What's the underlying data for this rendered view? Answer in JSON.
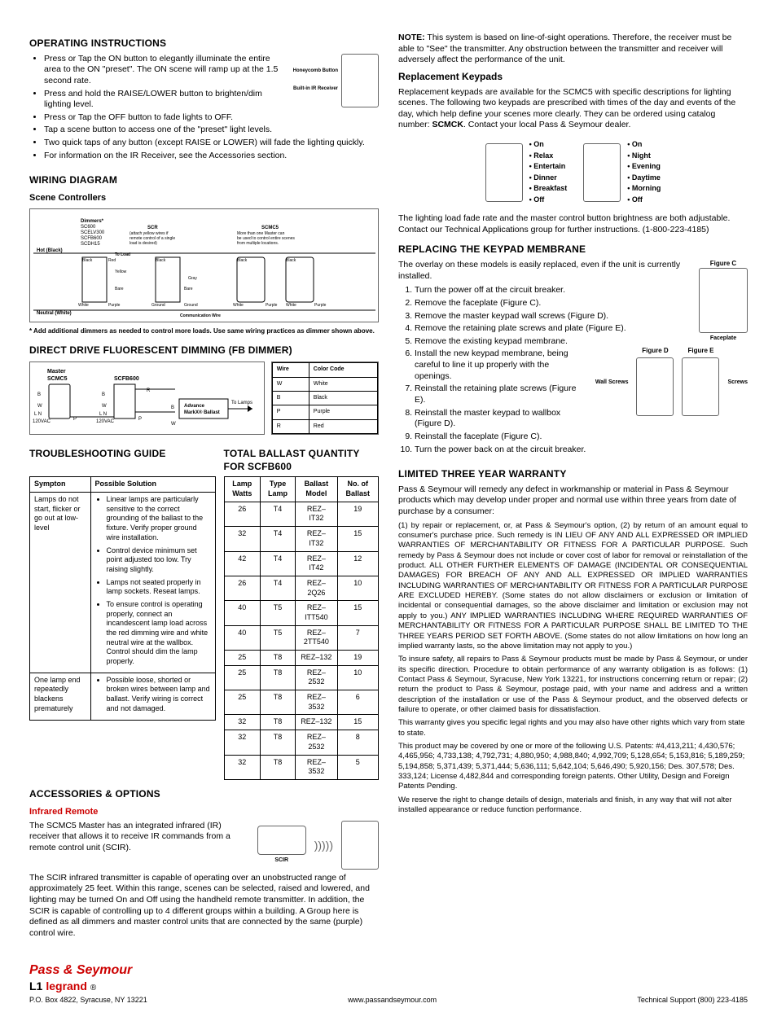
{
  "colors": {
    "accent": "#c00",
    "text": "#000",
    "border": "#666",
    "bg": "#ffffff"
  },
  "left": {
    "operating": {
      "title": "OPERATING INSTRUCTIONS",
      "items": [
        "Press or Tap the ON button to elegantly illuminate the entire area to the ON \"preset\". The ON scene will ramp up at the 1.5 second rate.",
        "Press and hold the RAISE/LOWER button to brighten/dim lighting level.",
        "Press or Tap the OFF button to fade lights to OFF.",
        "Tap a scene button to access one of the \"preset\" light levels.",
        "Two quick taps of any button (except RAISE or LOWER) will fade the lighting quickly.",
        "For information on the IR Receiver, see the Accessories section."
      ],
      "side_labels": {
        "top": "Honeycomb Button",
        "bottom": "Built-in IR Receiver"
      }
    },
    "wiring": {
      "title": "WIRING DIAGRAM",
      "sub": "Scene Controllers",
      "labels": {
        "dimmers": "Dimmers* SC600 SCELV300 SCFB600 SCDH15",
        "scr": "SCR (attach yellow wires if remote control of a single load is desired)",
        "scmc5": "SCMC5 More than one Master can be used to control entire scenes from multiple locations.",
        "hot": "Hot (Black)",
        "neutral": "Neutral (White)",
        "wires": [
          "Black",
          "Red",
          "Yellow",
          "Bare",
          "White",
          "Purple",
          "Gray",
          "Ground",
          "To Load",
          "Communication Wire"
        ]
      },
      "footnote": "* Add additional dimmers as needed to control more loads. Use same wiring practices as dimmer shown above."
    },
    "fb": {
      "title": "DIRECT DRIVE FLUORESCENT DIMMING (FB DIMMER)",
      "labels": {
        "master": "Master SCMC5",
        "dimmer": "SCFB600",
        "ballast": "Advance MarkX® Ballast",
        "to_lamps": "To Lamps"
      },
      "wire_table": {
        "header": [
          "Wire",
          "Color Code"
        ],
        "rows": [
          [
            "W",
            "White"
          ],
          [
            "B",
            "Black"
          ],
          [
            "P",
            "Purple"
          ],
          [
            "R",
            "Red"
          ]
        ]
      },
      "pins": [
        "B",
        "W",
        "L N",
        "120VAC",
        "P",
        "R"
      ]
    },
    "troubleshoot": {
      "title": "TROUBLESHOOTING GUIDE",
      "header": [
        "Sympton",
        "Possible Solution"
      ],
      "rows": [
        {
          "symptom": "Lamps do not start, flicker or go out at low-level",
          "solutions": [
            "Linear lamps are particularly sensitive to the correct grounding of the ballast to the fixture. Verify proper ground wire installation.",
            "Control device minimum set point adjusted too low. Try raising slightly.",
            "Lamps not seated properly in lamp sockets. Reseat lamps.",
            "To ensure control is operating properly, connect an incandescent lamp load across the red dimming wire and white neutral wire at the wallbox. Control should dim the lamp properly."
          ]
        },
        {
          "symptom": "One lamp end repeatedly blackens prematurely",
          "solutions": [
            "Possible loose, shorted or broken wires between lamp and ballast. Verify wiring is correct and not damaged."
          ]
        }
      ]
    },
    "ballast": {
      "title": "TOTAL BALLAST QUANTITY FOR SCFB600",
      "header": [
        "Lamp Watts",
        "Type Lamp",
        "Ballast Model",
        "No. of Ballast"
      ],
      "rows": [
        [
          "26",
          "T4",
          "REZ–IT32",
          "19"
        ],
        [
          "32",
          "T4",
          "REZ–IT32",
          "15"
        ],
        [
          "42",
          "T4",
          "REZ–IT42",
          "12"
        ],
        [
          "26",
          "T4",
          "REZ–2Q26",
          "10"
        ],
        [
          "40",
          "T5",
          "REZ–ITT540",
          "15"
        ],
        [
          "40",
          "T5",
          "REZ–2TT540",
          "7"
        ],
        [
          "25",
          "T8",
          "REZ–132",
          "19"
        ],
        [
          "25",
          "T8",
          "REZ–2532",
          "10"
        ],
        [
          "25",
          "T8",
          "REZ–3532",
          "6"
        ],
        [
          "32",
          "T8",
          "REZ–132",
          "15"
        ],
        [
          "32",
          "T8",
          "REZ–2532",
          "8"
        ],
        [
          "32",
          "T8",
          "REZ–3532",
          "5"
        ]
      ]
    },
    "accessories": {
      "title": "ACCESSORIES & OPTIONS",
      "sub": "Infrared Remote",
      "p1a": "The SCMC5 Master has an integrated infrared (IR) receiver that allows it to receive IR commands from a remote control unit (SCIR).",
      "scir_label": "SCIR",
      "p2": "The SCIR infrared transmitter is capable of operating over an unobstructed range of approximately 25 feet. Within this range, scenes can be selected, raised and lowered, and lighting may be turned On and Off using the handheld remote transmitter. In addition, the SCIR is capable of controlling up to 4 different groups within a building. A Group here is defined as all dimmers and master control units that are connected by the same (purple) control wire."
    }
  },
  "right": {
    "note": {
      "label": "NOTE:",
      "text": "  This system is based on line-of-sight operations. Therefore, the receiver must be able to \"See\" the transmitter. Any obstruction between the transmitter and receiver will adversely affect the performance of the unit."
    },
    "replacement": {
      "title": "Replacement Keypads",
      "p1": "Replacement keypads are available for the SCMC5 with specific descriptions for lighting scenes. The following two keypads are prescribed with times of the day and events of the day, which help define your scenes more clearly. They can be ordered using catalog number: ",
      "catalog": "SCMCK",
      "p1b": ". Contact your local Pass & Seymour dealer.",
      "keypad1": [
        "On",
        "Relax",
        "Entertain",
        "Dinner",
        "Breakfast",
        "Off"
      ],
      "keypad2": [
        "On",
        "Night",
        "Evening",
        "Daytime",
        "Morning",
        "Off"
      ],
      "p2": "The lighting load fade rate and the master control button brightness are both adjustable. Contact our Technical Applications group for further instructions. (1-800-223-4185)"
    },
    "membrane": {
      "title": "REPLACING THE KEYPAD MEMBRANE",
      "intro": "The overlay on these models is easily replaced, even if the unit is currently installed.",
      "steps": [
        "Turn the power off at the circuit breaker.",
        "Remove the faceplate (Figure C).",
        "Remove the master keypad wall screws (Figure D).",
        "Remove the retaining plate screws and plate (Figure E).",
        "Remove the existing keypad membrane.",
        "Install the new keypad membrane, being careful to line it up properly with the openings.",
        "Reinstall the retaining plate screws (Figure E).",
        "Reinstall the master keypad to wallbox (Figure D).",
        "Reinstall the faceplate (Figure C).",
        "Turn the power back on at the circuit breaker."
      ],
      "fig_c": "Figure C",
      "fig_d": "Figure D",
      "fig_e": "Figure E",
      "faceplate": "Faceplate",
      "wall_screws": "Wall Screws",
      "screws": "Screws"
    },
    "warranty": {
      "title": "LIMITED THREE YEAR WARRANTY",
      "p1": "Pass & Seymour will remedy any defect in workmanship or material in Pass & Seymour products which may develop under proper and normal use within three years from date of purchase by a consumer:",
      "p2": "(1) by repair or replacement, or, at Pass & Seymour's option, (2) by return of an amount equal to consumer's purchase price. Such remedy is IN LIEU OF ANY AND ALL EXPRESSED OR IMPLIED WARRANTIES OF MERCHANTABILITY OR FITNESS FOR A PARTICULAR PURPOSE. Such remedy by Pass & Seymour does not include or cover cost of labor for removal or reinstallation of the product. ALL OTHER FURTHER ELEMENTS OF DAMAGE (INCIDENTAL OR CONSEQUENTIAL DAMAGES) FOR BREACH OF ANY AND ALL EXPRESSED OR IMPLIED WARRANTIES INCLUDING WARRANTIES OF MERCHANTABILITY OR FITNESS FOR A PARTICULAR PURPOSE ARE EXCLUDED HEREBY. (Some states do not allow disclaimers or exclusion or limitation of incidental or consequential damages, so the above disclaimer and limitation or exclusion may not apply to you.) ANY IMPLIED WARRANTIES INCLUDING WHERE REQUIRED WARRANTIES OF MERCHANTABILITY OR FITNESS FOR A PARTICULAR PURPOSE SHALL BE LIMITED TO THE THREE YEARS PERIOD SET FORTH ABOVE. (Some states do not allow limitations on how long an implied warranty lasts, so the above limitation may not apply to you.)",
      "p3": "To insure safety, all repairs to Pass & Seymour products must be made by Pass & Seymour, or under its specific direction. Procedure to obtain performance of any warranty obligation is as follows: (1) Contact Pass & Seymour, Syracuse, New York 13221, for instructions concerning return or repair; (2) return the product to Pass & Seymour, postage paid, with your name and address and a written description of the installation or use of the Pass & Seymour product, and the observed defects or failure to operate, or other claimed basis for dissatisfaction.",
      "p4": "This warranty gives you specific legal rights and you may also have other rights which vary from state to state.",
      "p5": "This product may be covered by one or more of the following U.S. Patents: #4,413,211; 4,430,576; 4,465,956; 4,733,138; 4,792,731; 4,880,950; 4,988,840; 4,992,709; 5,128,654; 5,153,816; 5,189,259; 5,194,858; 5,371,439; 5,371,444; 5,636,111; 5,642,104; 5,646,490; 5,920,156; Des. 307,578; Des. 333,124; License 4,482,844 and corresponding foreign patents. Other Utility, Design and Foreign Patents Pending.",
      "p6": "We reserve the right to change details of design, materials and finish, in any way that will not alter installed appearance or reduce function performance."
    }
  },
  "footer": {
    "brand1": "Pass & Seymour",
    "brand2": "legrand",
    "address": "P.O. Box 4822, Syracuse, NY 13221",
    "url": "www.passandseymour.com",
    "support": "Technical Support (800) 223-4185"
  }
}
